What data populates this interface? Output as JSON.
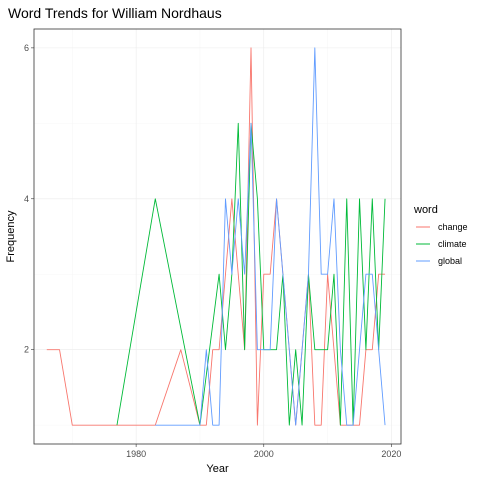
{
  "chart_data": {
    "type": "line",
    "title": "Word Trends for William Nordhaus",
    "xlabel": "Year",
    "ylabel": "Frequency",
    "xlim": [
      1964,
      2021.5
    ],
    "ylim": [
      0.75,
      6.25
    ],
    "x_ticks": [
      1980,
      2000,
      2020
    ],
    "x_tick_labels": [
      "1980",
      "2000",
      "2020"
    ],
    "y_ticks": [
      2,
      4,
      6
    ],
    "y_tick_labels": [
      "2",
      "4",
      "6"
    ],
    "grid": true,
    "legend": {
      "title": "word",
      "position": "right"
    },
    "series": [
      {
        "name": "change",
        "color": "#F8766D",
        "points": [
          [
            1966,
            2
          ],
          [
            1968,
            2
          ],
          [
            1970,
            1
          ],
          [
            1983,
            1
          ],
          [
            1987,
            2
          ],
          [
            1990,
            1
          ],
          [
            1991,
            1
          ],
          [
            1992,
            2
          ],
          [
            1993,
            2
          ],
          [
            1994,
            3
          ],
          [
            1995,
            4
          ],
          [
            1996,
            3
          ],
          [
            1997,
            2
          ],
          [
            1998,
            6
          ],
          [
            1999,
            1
          ],
          [
            2000,
            3
          ],
          [
            2001,
            3
          ],
          [
            2002,
            4
          ],
          [
            2003,
            3
          ],
          [
            2004,
            2
          ],
          [
            2005,
            1
          ],
          [
            2006,
            2
          ],
          [
            2007,
            3
          ],
          [
            2008,
            1
          ],
          [
            2009,
            1
          ],
          [
            2010,
            3
          ],
          [
            2011,
            2
          ],
          [
            2012,
            1
          ],
          [
            2013,
            1
          ],
          [
            2014,
            1
          ],
          [
            2015,
            1
          ],
          [
            2016,
            2
          ],
          [
            2017,
            2
          ],
          [
            2018,
            3
          ],
          [
            2019,
            3
          ]
        ]
      },
      {
        "name": "climate",
        "color": "#00BA38",
        "points": [
          [
            1977,
            1
          ],
          [
            1983,
            4
          ],
          [
            1990,
            1
          ],
          [
            1993,
            3
          ],
          [
            1994,
            2
          ],
          [
            1995,
            3
          ],
          [
            1996,
            5
          ],
          [
            1997,
            2
          ],
          [
            1998,
            5
          ],
          [
            1999,
            4
          ],
          [
            2000,
            2
          ],
          [
            2001,
            2
          ],
          [
            2002,
            2
          ],
          [
            2003,
            3
          ],
          [
            2004,
            1
          ],
          [
            2005,
            2
          ],
          [
            2006,
            1
          ],
          [
            2007,
            3
          ],
          [
            2008,
            2
          ],
          [
            2009,
            2
          ],
          [
            2010,
            2
          ],
          [
            2011,
            3
          ],
          [
            2012,
            1
          ],
          [
            2013,
            4
          ],
          [
            2014,
            1
          ],
          [
            2015,
            4
          ],
          [
            2016,
            2
          ],
          [
            2017,
            4
          ],
          [
            2018,
            2
          ],
          [
            2019,
            4
          ]
        ]
      },
      {
        "name": "global",
        "color": "#619CFF",
        "points": [
          [
            1983,
            1
          ],
          [
            1990,
            1
          ],
          [
            1991,
            2
          ],
          [
            1992,
            1
          ],
          [
            1993,
            1
          ],
          [
            1994,
            4
          ],
          [
            1995,
            3
          ],
          [
            1996,
            4
          ],
          [
            1997,
            3
          ],
          [
            1998,
            5
          ],
          [
            1999,
            2
          ],
          [
            2000,
            2
          ],
          [
            2001,
            2
          ],
          [
            2002,
            4
          ],
          [
            2003,
            3
          ],
          [
            2004,
            2
          ],
          [
            2005,
            1
          ],
          [
            2006,
            2
          ],
          [
            2007,
            3
          ],
          [
            2008,
            6
          ],
          [
            2009,
            3
          ],
          [
            2010,
            3
          ],
          [
            2011,
            4
          ],
          [
            2012,
            2
          ],
          [
            2013,
            1
          ],
          [
            2014,
            1
          ],
          [
            2015,
            2
          ],
          [
            2016,
            3
          ],
          [
            2017,
            3
          ],
          [
            2018,
            2
          ],
          [
            2019,
            1
          ]
        ]
      }
    ]
  }
}
